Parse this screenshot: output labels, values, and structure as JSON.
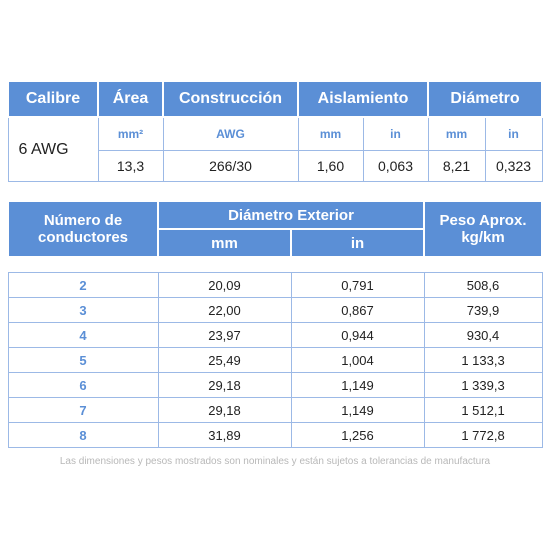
{
  "spec": {
    "headers": {
      "calibre": "Calibre",
      "area": "Área",
      "construccion": "Construcción",
      "aislamiento": "Aislamiento",
      "diametro": "Diámetro"
    },
    "units": {
      "area": "mm²",
      "construccion": "AWG",
      "aislamiento_mm": "mm",
      "aislamiento_in": "in",
      "diametro_mm": "mm",
      "diametro_in": "in"
    },
    "values": {
      "calibre": "6 AWG",
      "area": "13,3",
      "construccion": "266/30",
      "aislamiento_mm": "1,60",
      "aislamiento_in": "0,063",
      "diametro_mm": "8,21",
      "diametro_in": "0,323"
    }
  },
  "conductors": {
    "headers": {
      "numero": "Número de conductores",
      "diametro_exterior": "Diámetro Exterior",
      "mm": "mm",
      "in": "in",
      "peso": "Peso Aprox. kg/km"
    },
    "rows": [
      {
        "n": "2",
        "mm": "20,09",
        "in": "0,791",
        "peso": "508,6"
      },
      {
        "n": "3",
        "mm": "22,00",
        "in": "0,867",
        "peso": "739,9"
      },
      {
        "n": "4",
        "mm": "23,97",
        "in": "0,944",
        "peso": "930,4"
      },
      {
        "n": "5",
        "mm": "25,49",
        "in": "1,004",
        "peso": "1 133,3"
      },
      {
        "n": "6",
        "mm": "29,18",
        "in": "1,149",
        "peso": "1 339,3"
      },
      {
        "n": "7",
        "mm": "29,18",
        "in": "1,149",
        "peso": "1 512,1"
      },
      {
        "n": "8",
        "mm": "31,89",
        "in": "1,256",
        "peso": "1 772,8"
      }
    ]
  },
  "note": "Las dimensiones y pesos mostrados son nominales y están sujetos a tolerancias de manufactura"
}
